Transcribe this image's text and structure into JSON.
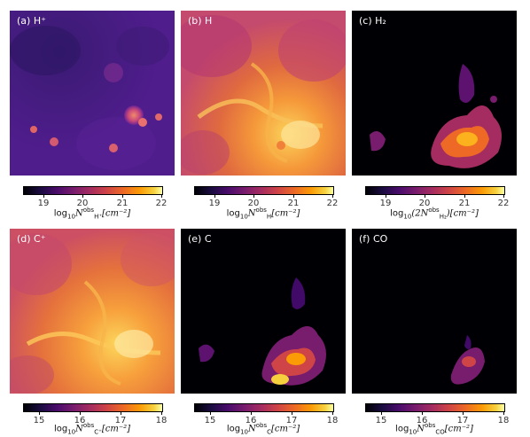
{
  "panels": [
    {
      "id": "a",
      "label": "(a)  H⁺",
      "bg": "#4f1d8c"
    },
    {
      "id": "b",
      "label": "(b)  H",
      "bg": "#c9477a"
    },
    {
      "id": "c",
      "label": "(c)  H₂",
      "bg": "#000000"
    },
    {
      "id": "d",
      "label": "(d)  C⁺",
      "bg": "#cc4f63"
    },
    {
      "id": "e",
      "label": "(e)  C",
      "bg": "#000000"
    },
    {
      "id": "f",
      "label": "(f)  CO",
      "bg": "#000000"
    }
  ],
  "colorbars": {
    "top": {
      "min": 18.5,
      "max": 22,
      "ticks": [
        "19",
        "20",
        "21",
        "22"
      ],
      "tick_values": [
        19,
        20,
        21,
        22
      ]
    },
    "bottom": {
      "min": 14.6,
      "max": 18,
      "ticks": [
        "15",
        "16",
        "17",
        "18"
      ],
      "tick_values": [
        15,
        16,
        17,
        18
      ]
    }
  },
  "colorbar_labels": {
    "a": {
      "pre": "log",
      "sub10": "10",
      "var": "N",
      "sup": "obs",
      "subspecies": "H⁺",
      "unit": "[cm⁻²]"
    },
    "b": {
      "pre": "log",
      "sub10": "10",
      "var": "N",
      "sup": "obs",
      "subspecies": "H",
      "unit": "[cm⁻²]"
    },
    "c": {
      "pre": "log",
      "sub10": "10",
      "var": "(2N",
      "sup": "obs",
      "subspecies": "H₂",
      "unit": ")[cm⁻²]"
    },
    "d": {
      "pre": "log",
      "sub10": "10",
      "var": "N",
      "sup": "obs",
      "subspecies": "C⁺",
      "unit": "[cm⁻²]"
    },
    "e": {
      "pre": "log",
      "sub10": "10",
      "var": "N",
      "sup": "obs",
      "subspecies": "C",
      "unit": "[cm⁻²]"
    },
    "f": {
      "pre": "log",
      "sub10": "10",
      "var": "N",
      "sup": "obs",
      "subspecies": "CO",
      "unit": "[cm⁻²]"
    }
  },
  "colormap": "inferno"
}
